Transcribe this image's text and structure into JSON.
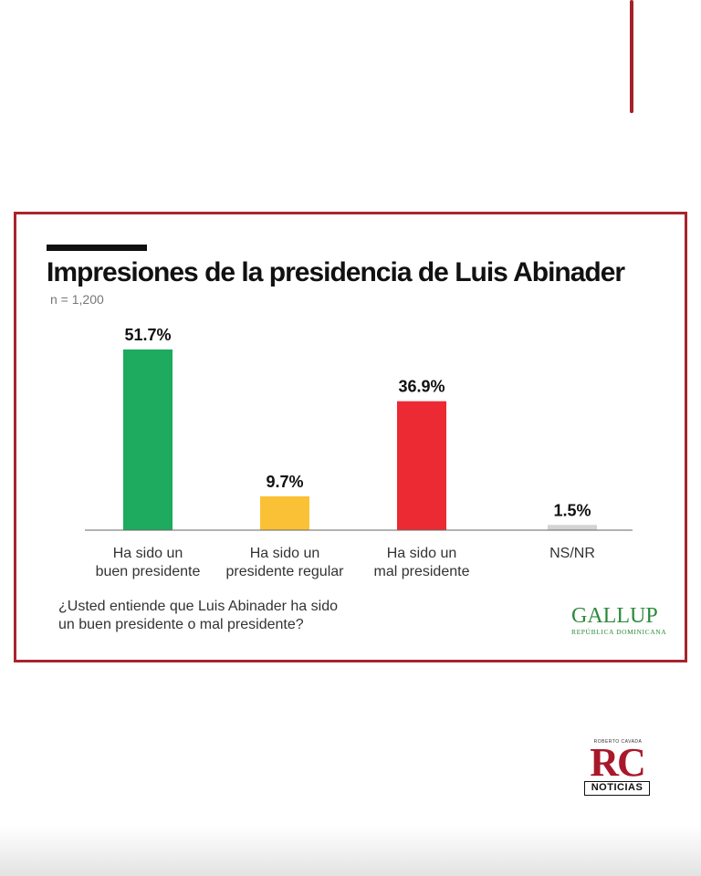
{
  "title": "Impresiones de la presidencia de Luis Abinader",
  "subtitle": "n = 1,200",
  "question": "¿Usted entiende que Luis Abinader ha sido\nun buen presidente o mal presidente?",
  "source_logo": {
    "word": "GALLUP",
    "sub": "REPÚBLICA DOMINICANA"
  },
  "publisher_logo": {
    "top": "ROBERTO CAVADA",
    "letters": "RC",
    "bottom": "NOTICIAS"
  },
  "colors": {
    "frame": "#a8252c",
    "gallup": "#2c8a3a",
    "rc": "#a8182a"
  },
  "chart_data": {
    "type": "bar",
    "title": "Impresiones de la presidencia de Luis Abinader",
    "subtitle": "n = 1,200",
    "categories": [
      [
        "Ha sido un",
        "buen presidente"
      ],
      [
        "Ha sido un",
        "presidente regular"
      ],
      [
        "Ha sido un",
        "mal presidente"
      ],
      [
        "NS/NR"
      ]
    ],
    "values": [
      51.7,
      9.7,
      36.9,
      1.5
    ],
    "value_labels": [
      "51.7%",
      "9.7%",
      "36.9%",
      "1.5%"
    ],
    "colors": [
      "#1eaa5f",
      "#fbc136",
      "#ec2a34",
      "#d3d3d3"
    ],
    "ylim": [
      0,
      51.7
    ],
    "grid": false,
    "legend": "none"
  }
}
